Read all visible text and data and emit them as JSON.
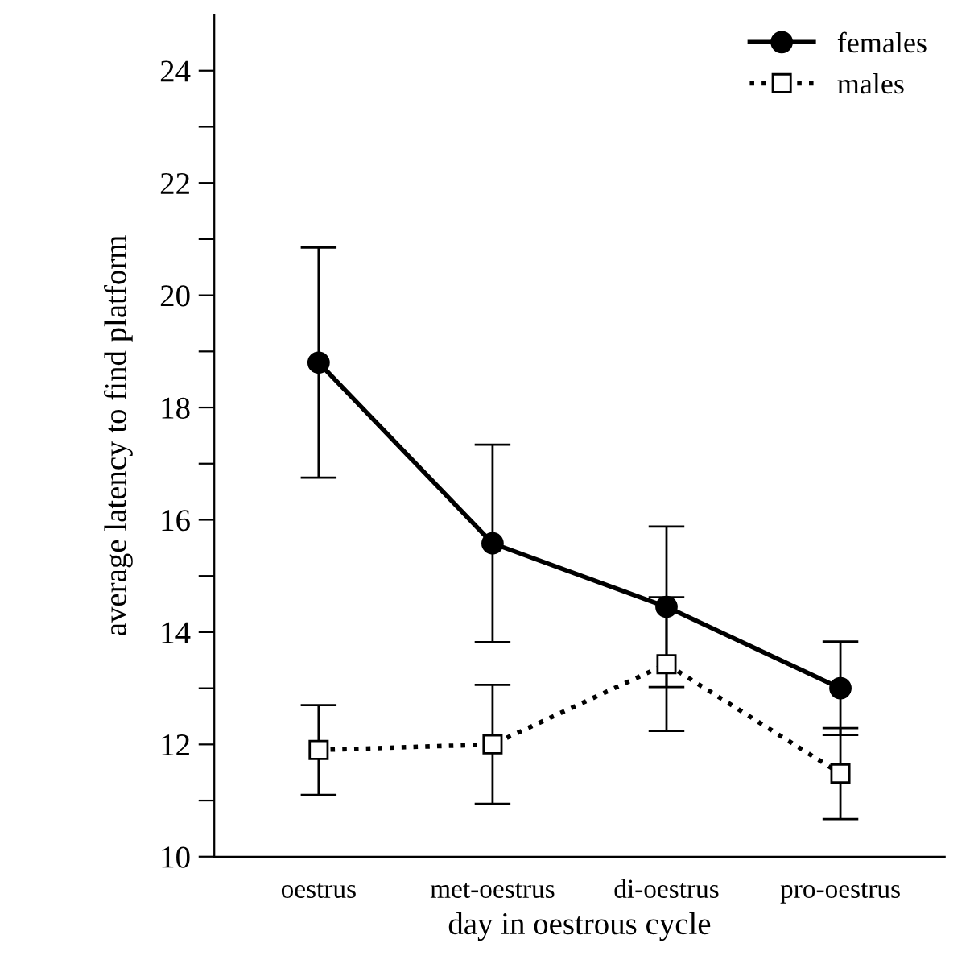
{
  "chart_data": {
    "type": "line",
    "xlabel": "day in oestrous cycle",
    "ylabel": "average latency to find platform",
    "categories": [
      "oestrus",
      "met-oestrus",
      "di-oestrus",
      "pro-oestrus"
    ],
    "series": [
      {
        "name": "females",
        "color": "#000000",
        "values": [
          18.8,
          15.58,
          14.45,
          13.0
        ],
        "errors": [
          2.05,
          1.76,
          1.43,
          0.83
        ],
        "marker": "circle",
        "line_style": "solid"
      },
      {
        "name": "males",
        "color": "#000000",
        "values": [
          11.9,
          12.0,
          13.43,
          11.48
        ],
        "errors": [
          0.8,
          1.06,
          1.19,
          0.81
        ],
        "marker": "square",
        "line_style": "dotted"
      }
    ],
    "ylim": [
      10,
      25
    ],
    "yticks": [
      10,
      {
        "value": 11,
        "label": null
      },
      12,
      {
        "value": 13,
        "label": null
      },
      14,
      {
        "value": 15,
        "label": null
      },
      16,
      {
        "value": 17,
        "label": null
      },
      18,
      {
        "value": 19,
        "label": null
      },
      20,
      {
        "value": 21,
        "label": null
      },
      22,
      {
        "value": 23,
        "label": null
      },
      24
    ],
    "grid": false,
    "legend": "top right"
  }
}
